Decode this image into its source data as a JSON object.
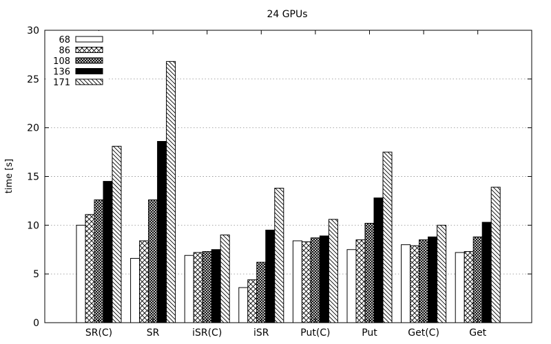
{
  "chart_data": {
    "type": "bar",
    "title": "24 GPUs",
    "xlabel": "",
    "ylabel": "time [s]",
    "ylim": [
      0,
      30
    ],
    "yticks": [
      0,
      5,
      10,
      15,
      20,
      25,
      30
    ],
    "grid": true,
    "legend_position": "top-left",
    "categories": [
      "SR(C)",
      "SR",
      "iSR(C)",
      "iSR",
      "Put(C)",
      "Put",
      "Get(C)",
      "Get"
    ],
    "series": [
      {
        "name": "68",
        "pattern": "empty",
        "values": [
          10.0,
          6.6,
          6.9,
          3.6,
          8.4,
          7.5,
          8.0,
          7.2
        ]
      },
      {
        "name": "86",
        "pattern": "crosshatch",
        "values": [
          11.1,
          8.4,
          7.2,
          4.4,
          8.3,
          8.5,
          7.9,
          7.3
        ]
      },
      {
        "name": "108",
        "pattern": "dense-grid",
        "values": [
          12.6,
          12.6,
          7.3,
          6.2,
          8.7,
          10.2,
          8.5,
          8.8
        ]
      },
      {
        "name": "136",
        "pattern": "solid-black",
        "values": [
          14.5,
          18.6,
          7.5,
          9.5,
          8.9,
          12.8,
          8.8,
          10.3
        ]
      },
      {
        "name": "171",
        "pattern": "diagonal",
        "values": [
          18.1,
          26.8,
          9.0,
          13.8,
          10.6,
          17.5,
          10.0,
          13.9
        ]
      }
    ]
  }
}
